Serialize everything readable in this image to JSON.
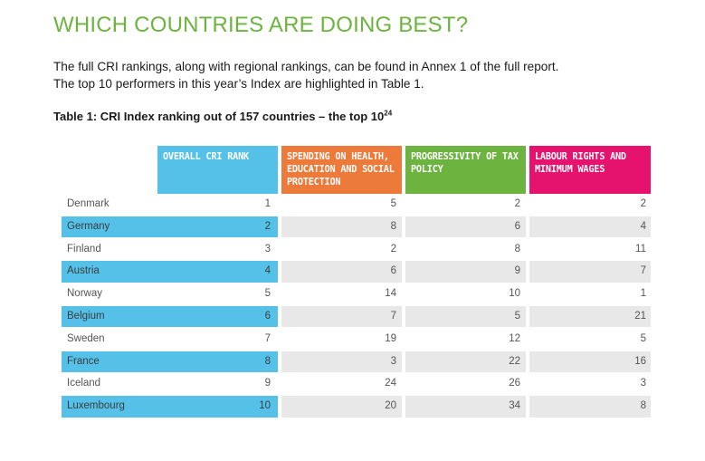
{
  "page": {
    "heading": "WHICH COUNTRIES ARE DOING BEST?",
    "intro_line1": "The full CRI rankings, along with regional rankings, can be found in Annex 1 of the full report.",
    "intro_line2": "The top 10 performers in this year’s Index are highlighted in Table 1.",
    "table_caption": "Table 1: CRI Index ranking out of 157 countries – the top 10",
    "table_caption_sup": "24"
  },
  "table": {
    "columns": [
      {
        "label": "OVERALL CRI RANK",
        "color": "#55c1e8"
      },
      {
        "label": "SPENDING ON HEALTH, EDUCATION AND SOCIAL PROTECTION",
        "color": "#ec7a3a"
      },
      {
        "label": "PROGRESSIVITY OF TAX POLICY",
        "color": "#6cb33f"
      },
      {
        "label": "LABOUR RIGHTS AND MINIMUM WAGES",
        "color": "#e5136e"
      }
    ],
    "rows": [
      {
        "country": "Denmark",
        "overall": "1",
        "spending": "5",
        "tax": "2",
        "labour": "2",
        "highlight": false
      },
      {
        "country": "Germany",
        "overall": "2",
        "spending": "8",
        "tax": "6",
        "labour": "4",
        "highlight": true
      },
      {
        "country": "Finland",
        "overall": "3",
        "spending": "2",
        "tax": "8",
        "labour": "11",
        "highlight": false
      },
      {
        "country": "Austria",
        "overall": "4",
        "spending": "6",
        "tax": "9",
        "labour": "7",
        "highlight": true
      },
      {
        "country": "Norway",
        "overall": "5",
        "spending": "14",
        "tax": "10",
        "labour": "1",
        "highlight": false
      },
      {
        "country": "Belgium",
        "overall": "6",
        "spending": "7",
        "tax": "5",
        "labour": "21",
        "highlight": true
      },
      {
        "country": "Sweden",
        "overall": "7",
        "spending": "19",
        "tax": "12",
        "labour": "5",
        "highlight": false
      },
      {
        "country": "France",
        "overall": "8",
        "spending": "3",
        "tax": "22",
        "labour": "16",
        "highlight": true
      },
      {
        "country": "Iceland",
        "overall": "9",
        "spending": "24",
        "tax": "26",
        "labour": "3",
        "highlight": false
      },
      {
        "country": "Luxembourg",
        "overall": "10",
        "spending": "20",
        "tax": "34",
        "labour": "8",
        "highlight": true
      }
    ]
  }
}
